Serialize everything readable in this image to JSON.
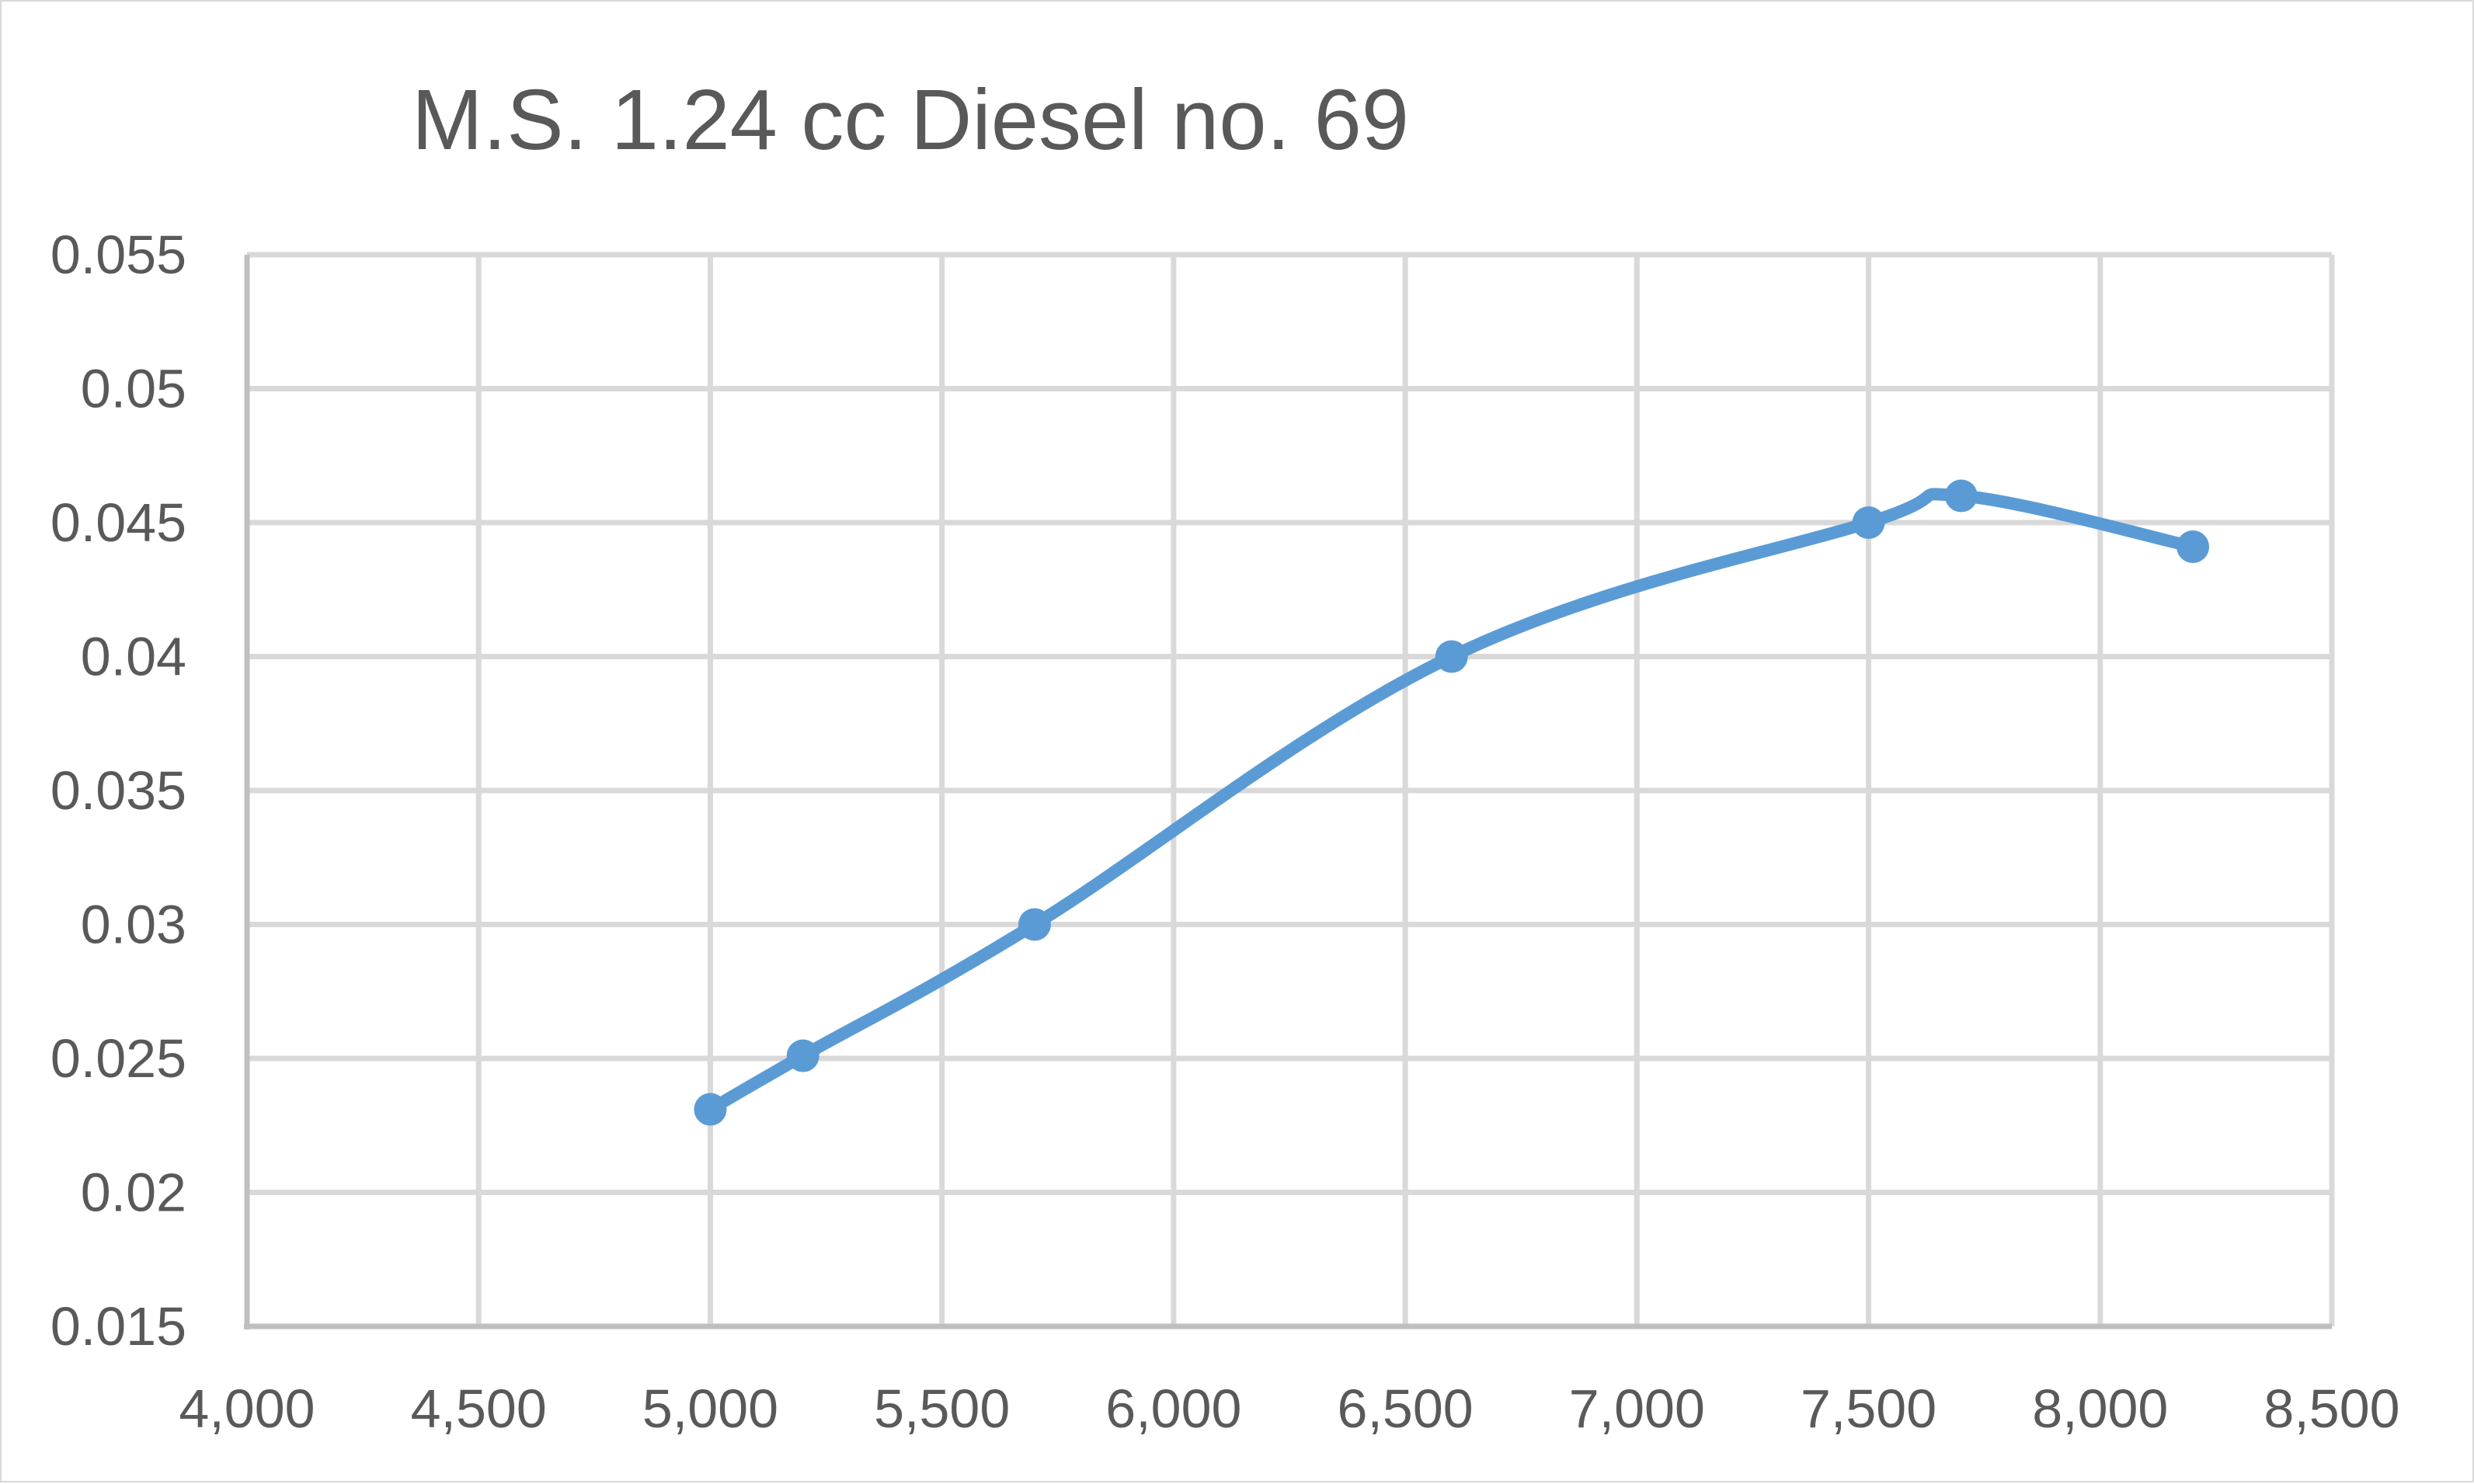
{
  "chart_data": {
    "type": "line",
    "title": "M.S. 1.24 cc Diesel no. 69",
    "xlabel": "",
    "ylabel": "",
    "xlim": [
      4000,
      8500
    ],
    "ylim": [
      0.015,
      0.055
    ],
    "x_ticks": [
      "4,000",
      "4,500",
      "5,000",
      "5,500",
      "6,000",
      "6,500",
      "7,000",
      "7,500",
      "8,000",
      "8,500"
    ],
    "y_ticks": [
      "0.015",
      "0.02",
      "0.025",
      "0.03",
      "0.035",
      "0.04",
      "0.045",
      "0.05",
      "0.055"
    ],
    "grid": true,
    "legend": "none",
    "line_color": "#5b9bd5",
    "grid_color": "#d9d9d9",
    "axis_color": "#bfbfbf",
    "series": [
      {
        "x": [
          5000,
          5200,
          5700,
          6600,
          7500,
          7700,
          8200
        ],
        "y": [
          0.0231,
          0.0251,
          0.03,
          0.04,
          0.045,
          0.046,
          0.0441
        ]
      }
    ]
  }
}
